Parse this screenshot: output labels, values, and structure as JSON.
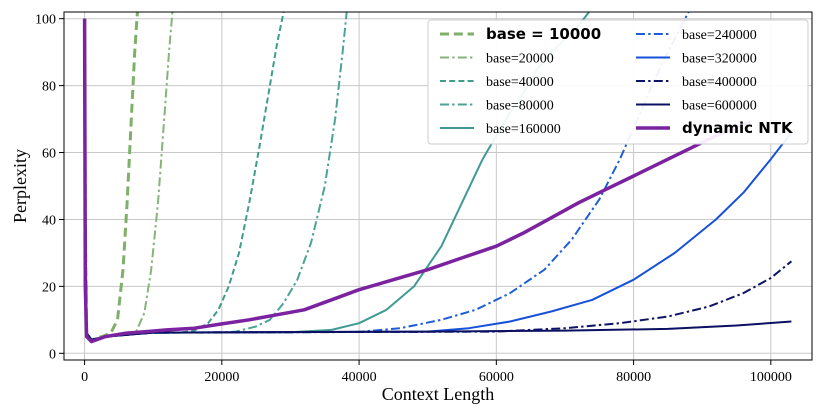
{
  "chart_data": {
    "type": "line",
    "xlabel": "Context Length",
    "ylabel": "Perplexity",
    "xlim": [
      -3000,
      106000
    ],
    "ylim": [
      -2,
      102
    ],
    "x_ticks": [
      0,
      20000,
      40000,
      60000,
      80000,
      100000
    ],
    "y_ticks": [
      0,
      20,
      40,
      60,
      80,
      100
    ],
    "grid": true,
    "legend": {
      "placement": "top-right",
      "columns": 2
    },
    "series": [
      {
        "name": "base = 10000",
        "color": "#7fb069",
        "dash": "dash",
        "width": 3,
        "bold": true,
        "points": [
          [
            0,
            100
          ],
          [
            100,
            40
          ],
          [
            300,
            6
          ],
          [
            1000,
            4
          ],
          [
            2500,
            5
          ],
          [
            3800,
            6
          ],
          [
            4800,
            10
          ],
          [
            5600,
            25
          ],
          [
            6200,
            45
          ],
          [
            6800,
            70
          ],
          [
            7300,
            90
          ],
          [
            7700,
            102
          ]
        ]
      },
      {
        "name": "base=20000",
        "color": "#86b37a",
        "dash": "dashdot",
        "width": 2,
        "points": [
          [
            0,
            100
          ],
          [
            100,
            40
          ],
          [
            300,
            6
          ],
          [
            1000,
            4
          ],
          [
            3000,
            5
          ],
          [
            6000,
            6.2
          ],
          [
            7500,
            6.5
          ],
          [
            8700,
            12
          ],
          [
            9700,
            25
          ],
          [
            10700,
            45
          ],
          [
            11600,
            70
          ],
          [
            12300,
            90
          ],
          [
            12800,
            102
          ]
        ]
      },
      {
        "name": "base=40000",
        "color": "#3f9d8c",
        "dash": "dash",
        "width": 2,
        "points": [
          [
            0,
            100
          ],
          [
            100,
            40
          ],
          [
            300,
            6
          ],
          [
            1000,
            4
          ],
          [
            3000,
            5
          ],
          [
            8000,
            6
          ],
          [
            14000,
            6.2
          ],
          [
            16000,
            6.8
          ],
          [
            18000,
            9
          ],
          [
            19500,
            13
          ],
          [
            21000,
            20
          ],
          [
            22500,
            30
          ],
          [
            24000,
            45
          ],
          [
            25500,
            62
          ],
          [
            27000,
            80
          ],
          [
            28000,
            92
          ],
          [
            29000,
            102
          ]
        ]
      },
      {
        "name": "base=80000",
        "color": "#4aa394",
        "dash": "dashdot",
        "width": 2,
        "points": [
          [
            0,
            100
          ],
          [
            100,
            40
          ],
          [
            300,
            6
          ],
          [
            1000,
            4
          ],
          [
            3000,
            5
          ],
          [
            10000,
            6.2
          ],
          [
            20000,
            6.2
          ],
          [
            22000,
            6.5
          ],
          [
            25000,
            8
          ],
          [
            27000,
            10
          ],
          [
            29000,
            15
          ],
          [
            31000,
            22
          ],
          [
            33000,
            33
          ],
          [
            35000,
            50
          ],
          [
            36500,
            70
          ],
          [
            37600,
            90
          ],
          [
            38200,
            102
          ]
        ]
      },
      {
        "name": "base=160000",
        "color": "#3f9a94",
        "dash": "solid",
        "width": 2,
        "points": [
          [
            0,
            100
          ],
          [
            100,
            40
          ],
          [
            300,
            6
          ],
          [
            1000,
            4
          ],
          [
            3000,
            5
          ],
          [
            10000,
            6.2
          ],
          [
            30000,
            6.3
          ],
          [
            36000,
            7
          ],
          [
            40000,
            9
          ],
          [
            44000,
            13
          ],
          [
            48000,
            20
          ],
          [
            52000,
            32
          ],
          [
            55000,
            45
          ],
          [
            58000,
            58
          ],
          [
            60000,
            65
          ],
          [
            62000,
            72
          ],
          [
            64000,
            78
          ],
          [
            66000,
            85
          ],
          [
            68000,
            90
          ],
          [
            70000,
            94
          ],
          [
            72000,
            98
          ],
          [
            73500,
            102
          ]
        ]
      },
      {
        "name": "base=240000",
        "color": "#1f5fd6",
        "dash": "dashdot",
        "width": 2,
        "points": [
          [
            0,
            100
          ],
          [
            100,
            40
          ],
          [
            300,
            6
          ],
          [
            1000,
            4
          ],
          [
            3000,
            5
          ],
          [
            10000,
            6.2
          ],
          [
            40000,
            6.4
          ],
          [
            46000,
            7.5
          ],
          [
            52000,
            10
          ],
          [
            57000,
            13
          ],
          [
            62000,
            18
          ],
          [
            67000,
            25
          ],
          [
            71000,
            34
          ],
          [
            75000,
            46
          ],
          [
            78000,
            58
          ],
          [
            81000,
            72
          ],
          [
            84000,
            86
          ],
          [
            86500,
            96
          ],
          [
            88000,
            102
          ]
        ]
      },
      {
        "name": "base=320000",
        "color": "#1651d8",
        "dash": "solid",
        "width": 2,
        "points": [
          [
            0,
            100
          ],
          [
            100,
            48
          ],
          [
            300,
            6
          ],
          [
            1000,
            4
          ],
          [
            3000,
            5
          ],
          [
            10000,
            6.2
          ],
          [
            50000,
            6.5
          ],
          [
            56000,
            7.5
          ],
          [
            62000,
            9.5
          ],
          [
            68000,
            12.5
          ],
          [
            74000,
            16
          ],
          [
            80000,
            22
          ],
          [
            86000,
            30
          ],
          [
            92000,
            40
          ],
          [
            96000,
            48
          ],
          [
            100000,
            58
          ],
          [
            103000,
            66
          ]
        ]
      },
      {
        "name": "base=400000",
        "color": "#0d1466",
        "dash": "dashdot",
        "width": 2,
        "points": [
          [
            0,
            100
          ],
          [
            100,
            44
          ],
          [
            300,
            6
          ],
          [
            1000,
            4
          ],
          [
            3000,
            5
          ],
          [
            10000,
            6.2
          ],
          [
            60000,
            6.5
          ],
          [
            70000,
            7.5
          ],
          [
            78000,
            9
          ],
          [
            85000,
            11
          ],
          [
            91000,
            14
          ],
          [
            96000,
            18
          ],
          [
            100000,
            22.5
          ],
          [
            103000,
            27.5
          ]
        ]
      },
      {
        "name": "base=600000",
        "color": "#0b1060",
        "dash": "solid",
        "width": 2,
        "points": [
          [
            0,
            100
          ],
          [
            100,
            45
          ],
          [
            300,
            6
          ],
          [
            1000,
            4
          ],
          [
            3000,
            5
          ],
          [
            10000,
            6.2
          ],
          [
            50000,
            6.5
          ],
          [
            70000,
            6.8
          ],
          [
            85000,
            7.3
          ],
          [
            95000,
            8.3
          ],
          [
            103000,
            9.5
          ]
        ]
      },
      {
        "name": "dynamic NTK",
        "color": "#7b22a0",
        "dash": "solid",
        "width": 3.5,
        "bold": true,
        "points": [
          [
            0,
            100
          ],
          [
            100,
            20
          ],
          [
            300,
            5
          ],
          [
            1000,
            3.5
          ],
          [
            3000,
            5
          ],
          [
            6000,
            6
          ],
          [
            9000,
            6.5
          ],
          [
            12000,
            7
          ],
          [
            16000,
            7.5
          ],
          [
            20000,
            8.8
          ],
          [
            24000,
            10
          ],
          [
            28000,
            11.5
          ],
          [
            32000,
            13
          ],
          [
            36000,
            16
          ],
          [
            40000,
            19
          ],
          [
            45000,
            22
          ],
          [
            50000,
            25
          ],
          [
            55000,
            28.5
          ],
          [
            60000,
            32
          ],
          [
            64000,
            36
          ],
          [
            68000,
            40.5
          ],
          [
            72000,
            45
          ],
          [
            76000,
            49
          ],
          [
            80000,
            53
          ],
          [
            84000,
            57
          ],
          [
            88000,
            61
          ],
          [
            92000,
            65
          ],
          [
            95000,
            67.5
          ],
          [
            97000,
            69
          ]
        ]
      }
    ]
  }
}
